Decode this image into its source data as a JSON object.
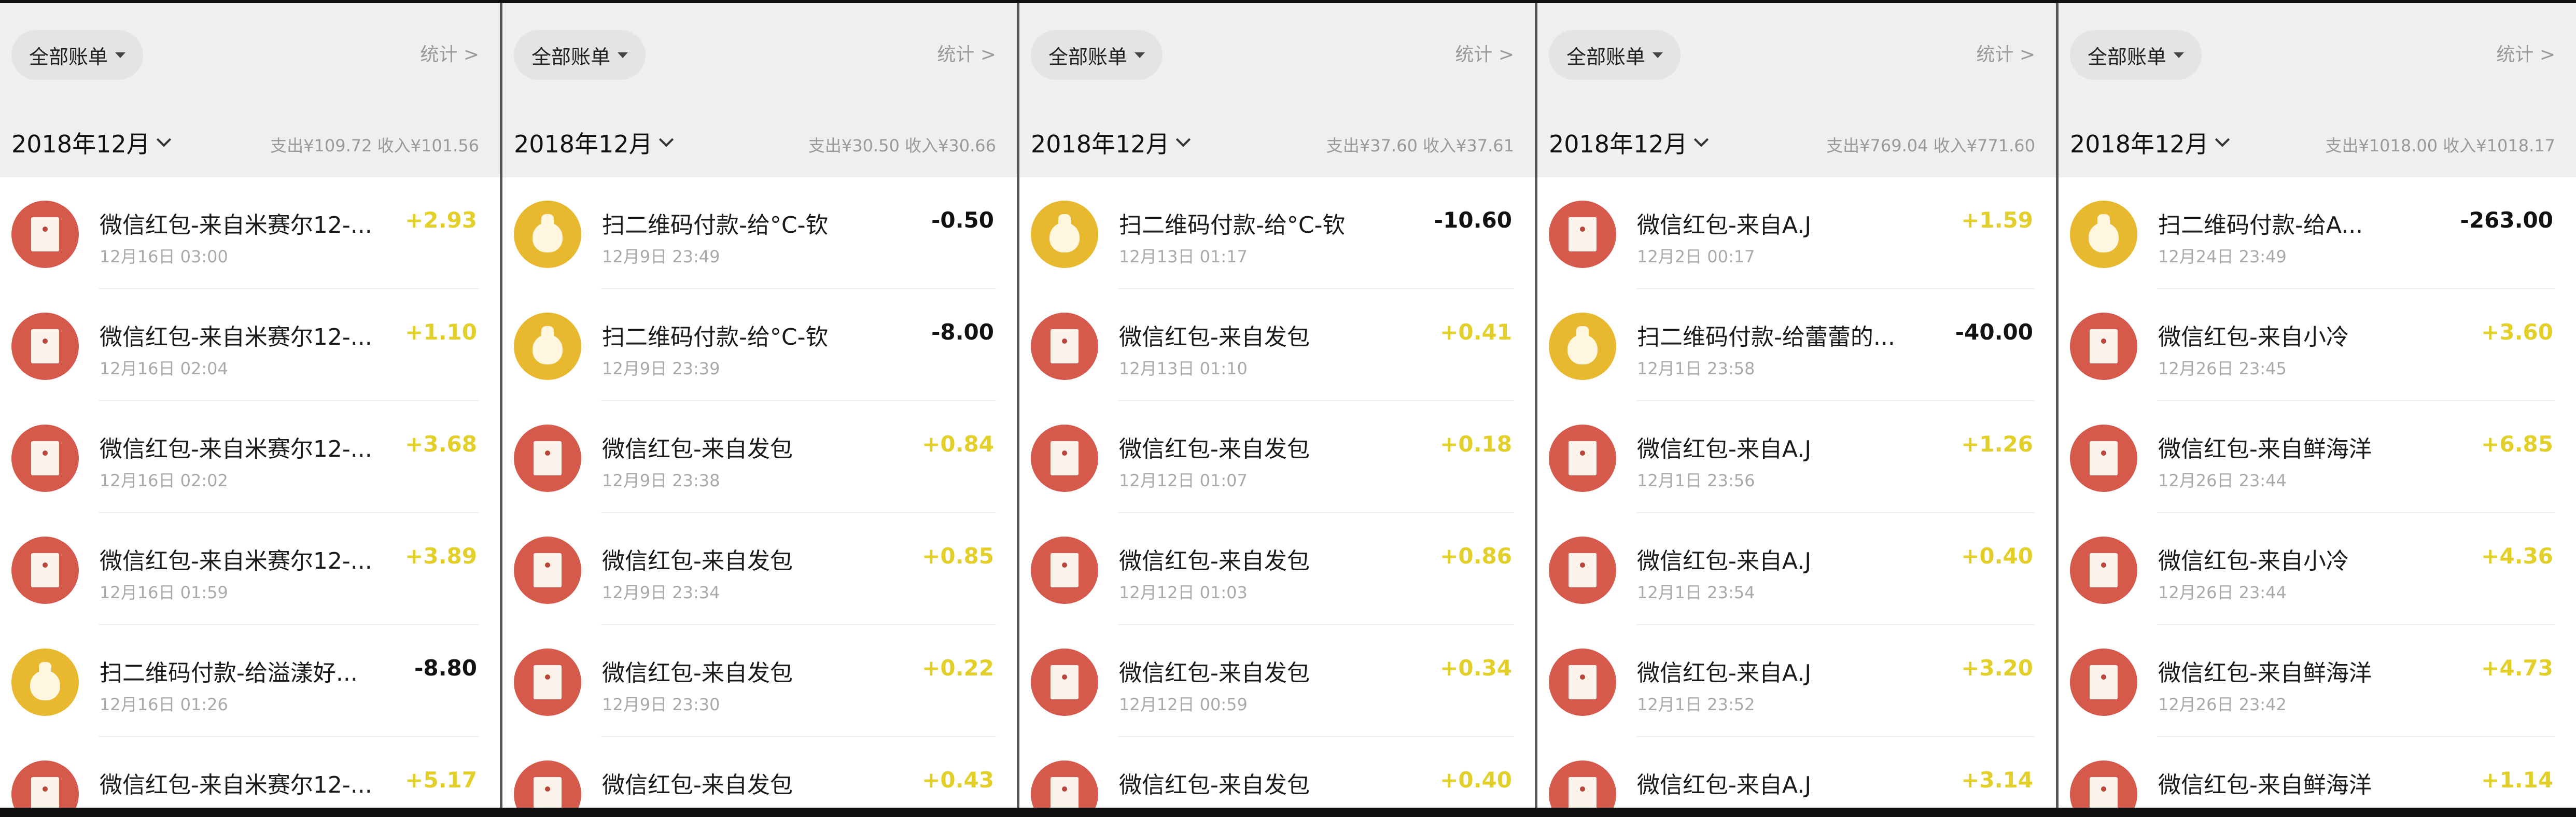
{
  "colors": {
    "income": "#e3cf2a",
    "expense": "#111111",
    "hongbao_icon": "#d65a4c",
    "qr_pay_icon": "#e8b92e"
  },
  "panels": [
    {
      "filter": "全部账单",
      "stats": "统计 >",
      "month": "2018年12月",
      "summary": "支出¥109.72 收入¥101.56",
      "rows": [
        {
          "icon": "red-envelope-icon",
          "title": "微信红包-来自米赛尔12-...",
          "date": "12月16日 03:00",
          "amount": "+2.93",
          "type": "in"
        },
        {
          "icon": "red-envelope-icon",
          "title": "微信红包-来自米赛尔12-...",
          "date": "12月16日 02:04",
          "amount": "+1.10",
          "type": "in"
        },
        {
          "icon": "red-envelope-icon",
          "title": "微信红包-来自米赛尔12-...",
          "date": "12月16日 02:02",
          "amount": "+3.68",
          "type": "in"
        },
        {
          "icon": "red-envelope-icon",
          "title": "微信红包-来自米赛尔12-...",
          "date": "12月16日 01:59",
          "amount": "+3.89",
          "type": "in"
        },
        {
          "icon": "money-bag-icon",
          "title": "扫二维码付款-给溢漾好...",
          "date": "12月16日 01:26",
          "amount": "-8.80",
          "type": "out"
        },
        {
          "icon": "red-envelope-icon",
          "title": "微信红包-来自米赛尔12-...",
          "date": "",
          "amount": "+5.17",
          "type": "in"
        }
      ]
    },
    {
      "filter": "全部账单",
      "stats": "统计 >",
      "month": "2018年12月",
      "summary": "支出¥30.50 收入¥30.66",
      "rows": [
        {
          "icon": "money-bag-icon",
          "title": "扫二维码付款-给°C-钦",
          "date": "12月9日 23:49",
          "amount": "-0.50",
          "type": "out"
        },
        {
          "icon": "money-bag-icon",
          "title": "扫二维码付款-给°C-钦",
          "date": "12月9日 23:39",
          "amount": "-8.00",
          "type": "out"
        },
        {
          "icon": "red-envelope-icon",
          "title": "微信红包-来自发包",
          "date": "12月9日 23:38",
          "amount": "+0.84",
          "type": "in"
        },
        {
          "icon": "red-envelope-icon",
          "title": "微信红包-来自发包",
          "date": "12月9日 23:34",
          "amount": "+0.85",
          "type": "in"
        },
        {
          "icon": "red-envelope-icon",
          "title": "微信红包-来自发包",
          "date": "12月9日 23:30",
          "amount": "+0.22",
          "type": "in"
        },
        {
          "icon": "red-envelope-icon",
          "title": "微信红包-来自发包",
          "date": "",
          "amount": "+0.43",
          "type": "in"
        }
      ]
    },
    {
      "filter": "全部账单",
      "stats": "统计 >",
      "month": "2018年12月",
      "summary": "支出¥37.60 收入¥37.61",
      "rows": [
        {
          "icon": "money-bag-icon",
          "title": "扫二维码付款-给°C-钦",
          "date": "12月13日 01:17",
          "amount": "-10.60",
          "type": "out"
        },
        {
          "icon": "red-envelope-icon",
          "title": "微信红包-来自发包",
          "date": "12月13日 01:10",
          "amount": "+0.41",
          "type": "in"
        },
        {
          "icon": "red-envelope-icon",
          "title": "微信红包-来自发包",
          "date": "12月12日 01:07",
          "amount": "+0.18",
          "type": "in"
        },
        {
          "icon": "red-envelope-icon",
          "title": "微信红包-来自发包",
          "date": "12月12日 01:03",
          "amount": "+0.86",
          "type": "in"
        },
        {
          "icon": "red-envelope-icon",
          "title": "微信红包-来自发包",
          "date": "12月12日 00:59",
          "amount": "+0.34",
          "type": "in"
        },
        {
          "icon": "red-envelope-icon",
          "title": "微信红包-来自发包",
          "date": "",
          "amount": "+0.40",
          "type": "in"
        }
      ]
    },
    {
      "filter": "全部账单",
      "stats": "统计 >",
      "month": "2018年12月",
      "summary": "支出¥769.04 收入¥771.60",
      "rows": [
        {
          "icon": "red-envelope-icon",
          "title": "微信红包-来自A.J",
          "date": "12月2日 00:17",
          "amount": "+1.59",
          "type": "in"
        },
        {
          "icon": "money-bag-icon",
          "title": "扫二维码付款-给蕾蕾的...",
          "date": "12月1日 23:58",
          "amount": "-40.00",
          "type": "out"
        },
        {
          "icon": "red-envelope-icon",
          "title": "微信红包-来自A.J",
          "date": "12月1日 23:56",
          "amount": "+1.26",
          "type": "in"
        },
        {
          "icon": "red-envelope-icon",
          "title": "微信红包-来自A.J",
          "date": "12月1日 23:54",
          "amount": "+0.40",
          "type": "in"
        },
        {
          "icon": "red-envelope-icon",
          "title": "微信红包-来自A.J",
          "date": "12月1日 23:52",
          "amount": "+3.20",
          "type": "in"
        },
        {
          "icon": "red-envelope-icon",
          "title": "微信红包-来自A.J",
          "date": "",
          "amount": "+3.14",
          "type": "in"
        }
      ]
    },
    {
      "filter": "全部账单",
      "stats": "统计 >",
      "month": "2018年12月",
      "summary": "支出¥1018.00 收入¥1018.17",
      "rows": [
        {
          "icon": "money-bag-icon",
          "title": "扫二维码付款-给A...",
          "date": "12月24日 23:49",
          "amount": "-263.00",
          "type": "out"
        },
        {
          "icon": "red-envelope-icon",
          "title": "微信红包-来自小冷",
          "date": "12月26日 23:45",
          "amount": "+3.60",
          "type": "in"
        },
        {
          "icon": "red-envelope-icon",
          "title": "微信红包-来自鲜海洋",
          "date": "12月26日 23:44",
          "amount": "+6.85",
          "type": "in"
        },
        {
          "icon": "red-envelope-icon",
          "title": "微信红包-来自小冷",
          "date": "12月26日 23:44",
          "amount": "+4.36",
          "type": "in"
        },
        {
          "icon": "red-envelope-icon",
          "title": "微信红包-来自鲜海洋",
          "date": "12月26日 23:42",
          "amount": "+4.73",
          "type": "in"
        },
        {
          "icon": "red-envelope-icon",
          "title": "微信红包-来自鲜海洋",
          "date": "",
          "amount": "+1.14",
          "type": "in"
        }
      ]
    }
  ]
}
